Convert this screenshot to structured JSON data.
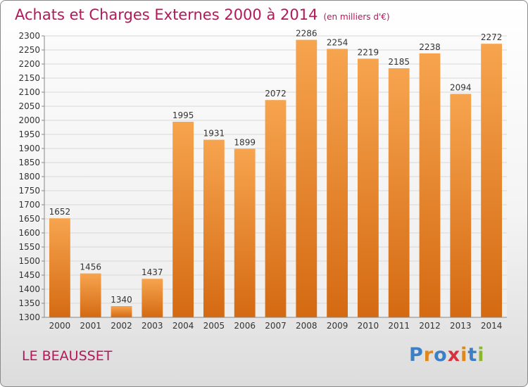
{
  "header": {
    "title": "Achats et Charges Externes 2000 à 2014",
    "subtitle": "(en milliers d'€)"
  },
  "footer": {
    "location": "LE BEAUSSET",
    "logo_letters": [
      "P",
      "r",
      "o",
      "x",
      "i",
      "t",
      "i"
    ],
    "logo_colors": [
      "#3c7fc4",
      "#e0861a",
      "#3c7fc4",
      "#d8323c",
      "#e0861a",
      "#3c7fc4",
      "#8bb82a"
    ]
  },
  "chart_data": {
    "type": "bar",
    "title": "Achats et Charges Externes 2000 à 2014",
    "subtitle": "(en milliers d'€)",
    "xlabel": "",
    "ylabel": "",
    "categories": [
      "2000",
      "2001",
      "2002",
      "2003",
      "2004",
      "2005",
      "2006",
      "2007",
      "2008",
      "2009",
      "2010",
      "2011",
      "2012",
      "2013",
      "2014"
    ],
    "values": [
      1652,
      1456,
      1340,
      1437,
      1995,
      1931,
      1899,
      2072,
      2286,
      2254,
      2219,
      2185,
      2238,
      2094,
      2272
    ],
    "ylim": [
      1300,
      2300
    ],
    "ytick_step": 50,
    "grid": true,
    "bar_color_top": "#f7a44f",
    "bar_color_bottom": "#d46a12",
    "label_color": "#333333"
  }
}
